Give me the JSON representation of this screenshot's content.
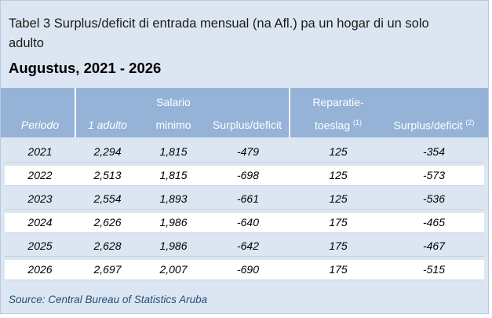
{
  "title_line1": "Tabel 3 Surplus/deficit di entrada mensual (na Afl.) pa un hogar di un solo",
  "title_line2": "adulto",
  "subtitle": "Augustus, 2021 - 2026",
  "headers": {
    "periodo": "Periodo",
    "adulto": "1 adulto",
    "salario_top": "Salario",
    "salario_bottom": "minimo",
    "surplus1": "Surplus/deficit",
    "reparatie_top": "Reparatie-",
    "reparatie_bottom": "toeslag",
    "reparatie_note": "(1)",
    "surplus2": "Surplus/deficit",
    "surplus2_note": "(2)"
  },
  "rows": [
    {
      "year": "2021",
      "adulto": "2,294",
      "salario": "1,815",
      "surplus": "-479",
      "reparatie": "125",
      "surplus2": "-354"
    },
    {
      "year": "2022",
      "adulto": "2,513",
      "salario": "1,815",
      "surplus": "-698",
      "reparatie": "125",
      "surplus2": "-573"
    },
    {
      "year": "2023",
      "adulto": "2,554",
      "salario": "1,893",
      "surplus": "-661",
      "reparatie": "125",
      "surplus2": "-536"
    },
    {
      "year": "2024",
      "adulto": "2,626",
      "salario": "1,986",
      "surplus": "-640",
      "reparatie": "175",
      "surplus2": "-465"
    },
    {
      "year": "2025",
      "adulto": "2,628",
      "salario": "1,986",
      "surplus": "-642",
      "reparatie": "175",
      "surplus2": "-467"
    },
    {
      "year": "2026",
      "adulto": "2,697",
      "salario": "2,007",
      "surplus": "-690",
      "reparatie": "175",
      "surplus2": "-515"
    }
  ],
  "source": "Source: Central Bureau of Statistics Aruba",
  "colors": {
    "header_bg": "#95b3d7",
    "panel_bg": "#dce6f2",
    "source_text": "#1f4e79"
  }
}
